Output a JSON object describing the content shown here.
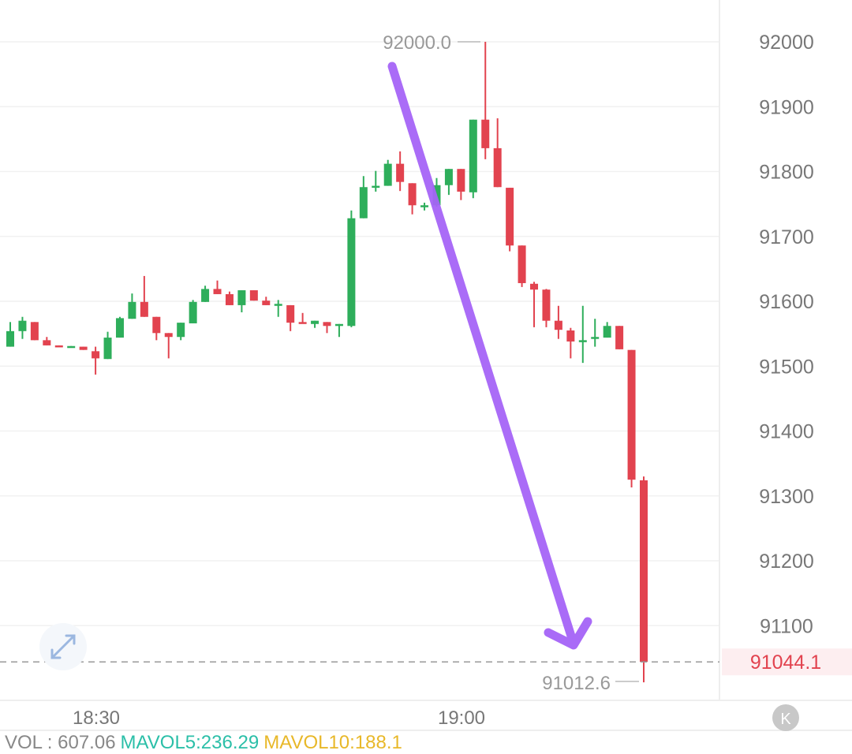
{
  "chart_data": {
    "type": "candlestick",
    "ylim": [
      90950,
      92050
    ],
    "yticks": [
      "92000",
      "91900",
      "91800",
      "91700",
      "91600",
      "91500",
      "91400",
      "91300",
      "91200",
      "91100"
    ],
    "xticks": [
      "18:30",
      "19:00"
    ],
    "grid": true,
    "colors": {
      "up": "#2eae5b",
      "down": "#e2434f",
      "annotation": "#a564f7"
    },
    "max_label": "92000.0",
    "min_label": "91012.6",
    "last_price": 91044.1,
    "last_price_label": "91044.1",
    "candles": [
      [
        91530,
        91568,
        91530,
        91554
      ],
      [
        91554,
        91576,
        91542,
        91570
      ],
      [
        91568,
        91568,
        91540,
        91540
      ],
      [
        91540,
        91545,
        91532,
        91532
      ],
      [
        91532,
        91532,
        91531,
        91531
      ],
      [
        91530,
        91531,
        91530,
        91531
      ],
      [
        91530,
        91530,
        91525,
        91525
      ],
      [
        91523,
        91530,
        91487,
        91512
      ],
      [
        91511,
        91553,
        91511,
        91544
      ],
      [
        91544,
        91576,
        91544,
        91574
      ],
      [
        91573,
        91612,
        91573,
        91599
      ],
      [
        91599,
        91639,
        91576,
        91576
      ],
      [
        91576,
        91576,
        91540,
        91551
      ],
      [
        91551,
        91551,
        91512,
        91545
      ],
      [
        91545,
        91567,
        91540,
        91567
      ],
      [
        91566,
        91602,
        91566,
        91599
      ],
      [
        91599,
        91624,
        91599,
        91619
      ],
      [
        91619,
        91632,
        91611,
        91611
      ],
      [
        91611,
        91615,
        91594,
        91594
      ],
      [
        91594,
        91617,
        91583,
        91617
      ],
      [
        91617,
        91617,
        91601,
        91601
      ],
      [
        91601,
        91607,
        91594,
        91594
      ],
      [
        91595,
        91602,
        91576,
        91596
      ],
      [
        91594,
        91594,
        91554,
        91567
      ],
      [
        91568,
        91582,
        91567,
        91567
      ],
      [
        91565,
        91570,
        91559,
        91570
      ],
      [
        91568,
        91568,
        91551,
        91562
      ],
      [
        91564,
        91565,
        91545,
        91565
      ],
      [
        91562,
        91740,
        91560,
        91728
      ],
      [
        91728,
        91793,
        91728,
        91776
      ],
      [
        91776,
        91801,
        91769,
        91778
      ],
      [
        91778,
        91818,
        91778,
        91812
      ],
      [
        91812,
        91831,
        91770,
        91784
      ],
      [
        91782,
        91782,
        91734,
        91748
      ],
      [
        91747,
        91752,
        91740,
        91748
      ],
      [
        91748,
        91790,
        91746,
        91779
      ],
      [
        91779,
        91804,
        91764,
        91804
      ],
      [
        91804,
        91804,
        91756,
        91769
      ],
      [
        91768,
        91880,
        91759,
        91880
      ],
      [
        91880,
        92000,
        91819,
        91836
      ],
      [
        91836,
        91882,
        91776,
        91776
      ],
      [
        91775,
        91775,
        91677,
        91686
      ],
      [
        91686,
        91686,
        91622,
        91628
      ],
      [
        91627,
        91630,
        91560,
        91618
      ],
      [
        91618,
        91619,
        91560,
        91570
      ],
      [
        91570,
        91593,
        91542,
        91556
      ],
      [
        91555,
        91559,
        91512,
        91538
      ],
      [
        91539,
        91593,
        91505,
        91540
      ],
      [
        91544,
        91573,
        91530,
        91545
      ],
      [
        91544,
        91568,
        91544,
        91562
      ],
      [
        91562,
        91562,
        91526,
        91526
      ],
      [
        91525,
        91525,
        91313,
        91325
      ],
      [
        91324,
        91330,
        91012.6,
        91044.1
      ]
    ]
  },
  "volume": {
    "vol": "VOL : 607.06",
    "mavol5": "MAVOL5:236.29",
    "mavol10": "MAVOL10:188.1",
    "colors": {
      "vol": "#888888",
      "mavol5": "#2bbfa8",
      "mavol10": "#e8b829"
    }
  },
  "controls": {
    "expand_icon": "expand-arrows-icon",
    "k_button": "K"
  }
}
